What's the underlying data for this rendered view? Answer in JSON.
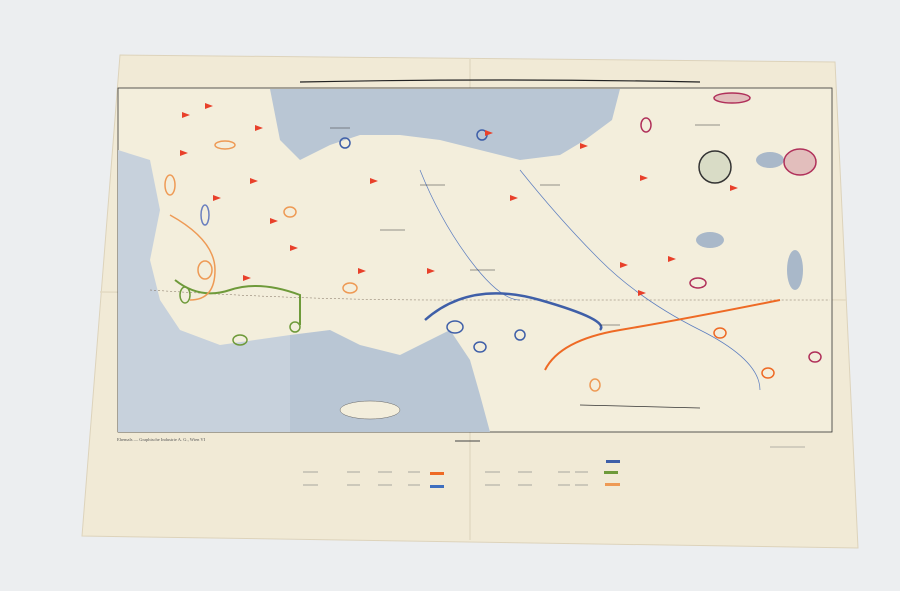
{
  "imprint": "Ehemals — Graphische Industrie A. G., Wien VI",
  "colors": {
    "paper": "#f1ead6",
    "sea": "#b9c6d4",
    "flag": "#e8402a",
    "line_blue": "#3f5fa8",
    "line_green": "#6e9a3a",
    "line_orange": "#ee7a25",
    "marker_purple": "#b0305a"
  },
  "legend": {
    "swatches": [
      "#3f5fa8",
      "#6e9a3a",
      "#ee9a55",
      "#ee6a25",
      "#3f6fbf"
    ]
  }
}
